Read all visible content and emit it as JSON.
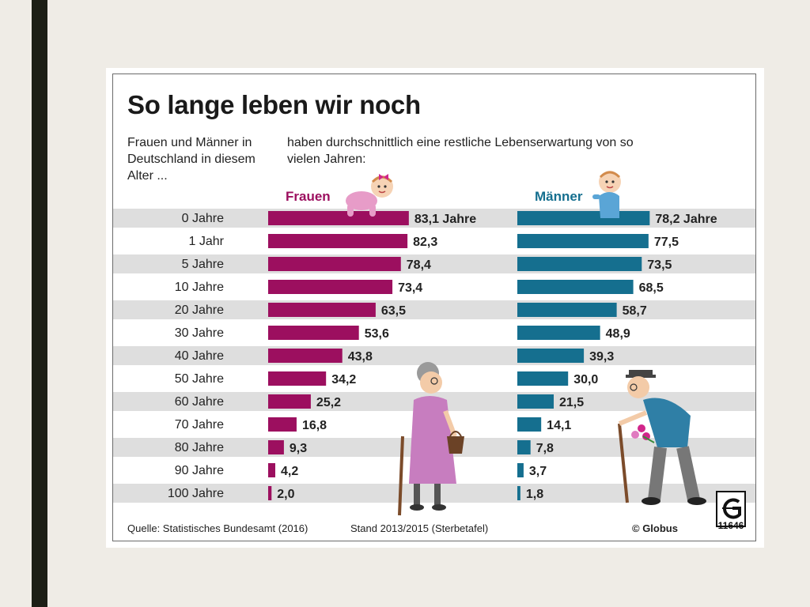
{
  "figure": {
    "title": "So lange leben wir noch",
    "intro_left": "Frauen und Männer in Deutschland in diesem Alter ...",
    "intro_right": "haben durchschnittlich eine restliche Lebenserwartung von so vielen Jahren:",
    "source": "Quelle: Statistisches Bundesamt (2016)",
    "stand": "Stand 2013/2015 (Sterbetafel)",
    "credit": "© Globus",
    "logo_number": "11646"
  },
  "colors": {
    "frauen": "#9c0f5f",
    "maenner": "#156f8f",
    "stripe": "#dedede",
    "illustration_dress": "#c77dbf",
    "illustration_shirt": "#2f7fa6"
  },
  "chart_data": {
    "type": "bar",
    "orientation": "horizontal",
    "categories": [
      "0 Jahre",
      "1 Jahr",
      "5 Jahre",
      "10 Jahre",
      "20 Jahre",
      "30 Jahre",
      "40 Jahre",
      "50 Jahre",
      "60 Jahre",
      "70 Jahre",
      "80 Jahre",
      "90 Jahre",
      "100 Jahre"
    ],
    "series": [
      {
        "name": "Frauen",
        "values": [
          83.1,
          82.3,
          78.4,
          73.4,
          63.5,
          53.6,
          43.8,
          34.2,
          25.2,
          16.8,
          9.3,
          4.2,
          2.0
        ],
        "labels": [
          "83,1 Jahre",
          "82,3",
          "78,4",
          "73,4",
          "63,5",
          "53,6",
          "43,8",
          "34,2",
          "25,2",
          "16,8",
          "9,3",
          "4,2",
          "2,0"
        ]
      },
      {
        "name": "Männer",
        "values": [
          78.2,
          77.5,
          73.5,
          68.5,
          58.7,
          48.9,
          39.3,
          30.0,
          21.5,
          14.1,
          7.8,
          3.7,
          1.8
        ],
        "labels": [
          "78,2 Jahre",
          "77,5",
          "73,5",
          "68,5",
          "58,7",
          "48,9",
          "39,3",
          "30,0",
          "21,5",
          "14,1",
          "7,8",
          "3,7",
          "1,8"
        ]
      }
    ],
    "xlim": [
      0,
      90
    ],
    "grid": false,
    "legend": "top"
  }
}
